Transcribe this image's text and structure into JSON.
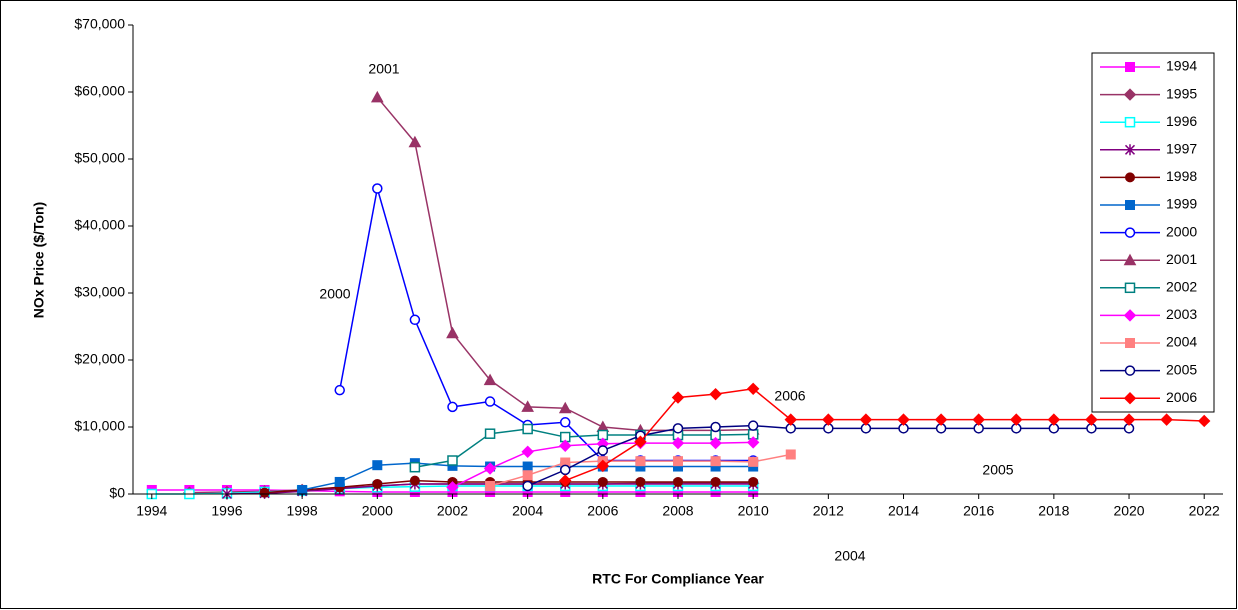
{
  "chart_data": {
    "type": "line",
    "xlabel": "RTC For Compliance Year",
    "ylabel": "NOx Price ($/Ton)",
    "xlim": [
      1993.5,
      2022.5
    ],
    "xticks": [
      1994,
      1996,
      1998,
      2000,
      2002,
      2004,
      2006,
      2008,
      2010,
      2012,
      2014,
      2016,
      2018,
      2020,
      2022
    ],
    "ylim": [
      0,
      70000
    ],
    "yticks": [
      {
        "value": 0,
        "label": "$0"
      },
      {
        "value": 10000,
        "label": "$10,000"
      },
      {
        "value": 20000,
        "label": "$20,000"
      },
      {
        "value": 30000,
        "label": "$30,000"
      },
      {
        "value": 40000,
        "label": "$40,000"
      },
      {
        "value": 50000,
        "label": "$50,000"
      },
      {
        "value": 60000,
        "label": "$60,000"
      },
      {
        "value": 70000,
        "label": "$70,000"
      }
    ],
    "legend": "right",
    "annotations": [
      "2001",
      "2000",
      "2006",
      "2004",
      "2005"
    ],
    "series": [
      {
        "name": "1994",
        "color": "#ff00ff",
        "marker": "square",
        "x": [
          1994,
          1995,
          1996,
          1997,
          1998,
          1999,
          2000,
          2001,
          2002,
          2003,
          2004,
          2005,
          2006,
          2007,
          2008,
          2009,
          2010
        ],
        "values": [
          600,
          600,
          600,
          600,
          500,
          400,
          300,
          300,
          300,
          300,
          300,
          300,
          300,
          300,
          300,
          300,
          300
        ]
      },
      {
        "name": "1995",
        "color": "#993366",
        "marker": "diamond",
        "x": [
          1995,
          1996,
          1997,
          1998,
          1999,
          2000,
          2001,
          2002,
          2003,
          2004,
          2005,
          2006,
          2007,
          2008,
          2009,
          2010
        ],
        "values": [
          200,
          300,
          400,
          600,
          900,
          1200,
          1500,
          1500,
          1500,
          1500,
          1500,
          1500,
          1600,
          1600,
          1600,
          1600
        ]
      },
      {
        "name": "1996",
        "color": "#00ffff",
        "marker": "open-square",
        "x": [
          1994,
          1995,
          1996,
          1997,
          1998,
          1999,
          2000,
          2001,
          2002,
          2003,
          2004,
          2005,
          2006,
          2007,
          2008,
          2009,
          2010
        ],
        "values": [
          0,
          0,
          100,
          300,
          500,
          800,
          1000,
          1100,
          1200,
          1200,
          1200,
          1200,
          1200,
          1200,
          1200,
          1200,
          1200
        ]
      },
      {
        "name": "1997",
        "color": "#800080",
        "marker": "star",
        "x": [
          1996,
          1997,
          1998,
          1999,
          2000,
          2001,
          2002,
          2003,
          2004,
          2005,
          2006,
          2007,
          2008,
          2009,
          2010
        ],
        "values": [
          0,
          100,
          400,
          800,
          1200,
          1500,
          1500,
          1500,
          1500,
          1500,
          1500,
          1500,
          1500,
          1500,
          1500
        ]
      },
      {
        "name": "1998",
        "color": "#800000",
        "marker": "circle",
        "x": [
          1997,
          1998,
          1999,
          2000,
          2001,
          2002,
          2003,
          2004,
          2005,
          2006,
          2007,
          2008,
          2009,
          2010
        ],
        "values": [
          200,
          600,
          1000,
          1500,
          2000,
          1800,
          1800,
          1800,
          1800,
          1800,
          1800,
          1800,
          1800,
          1800
        ]
      },
      {
        "name": "1999",
        "color": "#0066cc",
        "marker": "square",
        "x": [
          1998,
          1999,
          2000,
          2001,
          2002,
          2003,
          2004,
          2005,
          2006,
          2007,
          2008,
          2009,
          2010
        ],
        "values": [
          600,
          1800,
          4300,
          4600,
          4200,
          4100,
          4100,
          4100,
          4100,
          4100,
          4100,
          4100,
          4100
        ]
      },
      {
        "name": "2000",
        "color": "#0000ff",
        "marker": "open-circle",
        "x": [
          1999,
          2000,
          2001,
          2002,
          2003,
          2004,
          2005,
          2006,
          2007,
          2008,
          2009,
          2010
        ],
        "values": [
          15500,
          45600,
          26000,
          13000,
          13800,
          10300,
          10700,
          5000,
          5000,
          5000,
          5000,
          5000
        ]
      },
      {
        "name": "2001",
        "color": "#993366",
        "marker": "triangle",
        "x": [
          2000,
          2001,
          2002,
          2003,
          2004,
          2005,
          2006,
          2007,
          2008,
          2009,
          2010
        ],
        "values": [
          59200,
          52500,
          24000,
          17000,
          13000,
          12800,
          10000,
          9500,
          9500,
          9500,
          9600
        ]
      },
      {
        "name": "2002",
        "color": "#008080",
        "marker": "open-square",
        "x": [
          2001,
          2002,
          2003,
          2004,
          2005,
          2006,
          2007,
          2008,
          2009,
          2010
        ],
        "values": [
          4000,
          5000,
          9000,
          9700,
          8500,
          8800,
          8800,
          8800,
          8800,
          8900
        ]
      },
      {
        "name": "2003",
        "color": "#ff00ff",
        "marker": "diamond",
        "x": [
          2002,
          2003,
          2004,
          2005,
          2006,
          2007,
          2008,
          2009,
          2010
        ],
        "values": [
          1000,
          3800,
          6300,
          7200,
          7500,
          7600,
          7600,
          7600,
          7700
        ]
      },
      {
        "name": "2004",
        "color": "#ff8080",
        "marker": "square",
        "x": [
          2003,
          2004,
          2005,
          2006,
          2007,
          2008,
          2009,
          2010,
          2011
        ],
        "values": [
          1200,
          2800,
          4700,
          4900,
          4900,
          4900,
          4900,
          4800,
          5900
        ]
      },
      {
        "name": "2005",
        "color": "#000080",
        "marker": "open-circle",
        "x": [
          2004,
          2005,
          2006,
          2007,
          2008,
          2009,
          2010,
          2011,
          2012,
          2013,
          2014,
          2015,
          2016,
          2017,
          2018,
          2019,
          2020
        ],
        "values": [
          1200,
          3600,
          6500,
          8700,
          9800,
          10000,
          10200,
          9800,
          9800,
          9800,
          9800,
          9800,
          9800,
          9800,
          9800,
          9800,
          9800
        ]
      },
      {
        "name": "2006",
        "color": "#ff0000",
        "marker": "diamond",
        "x": [
          2005,
          2006,
          2007,
          2008,
          2009,
          2010,
          2011,
          2012,
          2013,
          2014,
          2015,
          2016,
          2017,
          2018,
          2019,
          2020,
          2021,
          2022
        ],
        "values": [
          2000,
          4200,
          7800,
          14400,
          14900,
          15700,
          11100,
          11100,
          11100,
          11100,
          11100,
          11100,
          11100,
          11100,
          11100,
          11100,
          11100,
          10900
        ]
      }
    ]
  }
}
